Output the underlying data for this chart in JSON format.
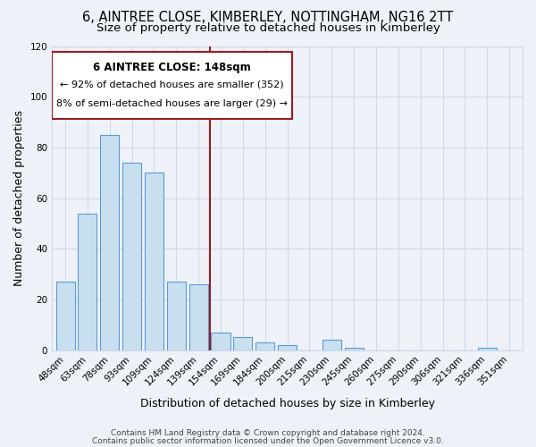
{
  "title_line1": "6, AINTREE CLOSE, KIMBERLEY, NOTTINGHAM, NG16 2TT",
  "title_line2": "Size of property relative to detached houses in Kimberley",
  "xlabel": "Distribution of detached houses by size in Kimberley",
  "ylabel": "Number of detached properties",
  "categories": [
    "48sqm",
    "63sqm",
    "78sqm",
    "93sqm",
    "109sqm",
    "124sqm",
    "139sqm",
    "154sqm",
    "169sqm",
    "184sqm",
    "200sqm",
    "215sqm",
    "230sqm",
    "245sqm",
    "260sqm",
    "275sqm",
    "290sqm",
    "306sqm",
    "321sqm",
    "336sqm",
    "351sqm"
  ],
  "values": [
    27,
    54,
    85,
    74,
    70,
    27,
    26,
    7,
    5,
    3,
    2,
    0,
    4,
    1,
    0,
    0,
    0,
    0,
    0,
    1,
    0
  ],
  "bar_color": "#c8dff0",
  "bar_edge_color": "#5b9bd5",
  "vline_color": "#9b1c1c",
  "annotation_line1": "6 AINTREE CLOSE: 148sqm",
  "annotation_line2": "← 92% of detached houses are smaller (352)",
  "annotation_line3": "8% of semi-detached houses are larger (29) →",
  "ylim": [
    0,
    120
  ],
  "yticks": [
    0,
    20,
    40,
    60,
    80,
    100,
    120
  ],
  "footer_line1": "Contains HM Land Registry data © Crown copyright and database right 2024.",
  "footer_line2": "Contains public sector information licensed under the Open Government Licence v3.0.",
  "background_color": "#eef2f8",
  "plot_background_color": "#eef2f8",
  "grid_color": "#d0d8e8",
  "title_fontsize": 10.5,
  "subtitle_fontsize": 9.5,
  "axis_label_fontsize": 9,
  "tick_fontsize": 7.5,
  "footer_fontsize": 6.5,
  "annot_fontsize_title": 8.5,
  "annot_fontsize_body": 8.0
}
